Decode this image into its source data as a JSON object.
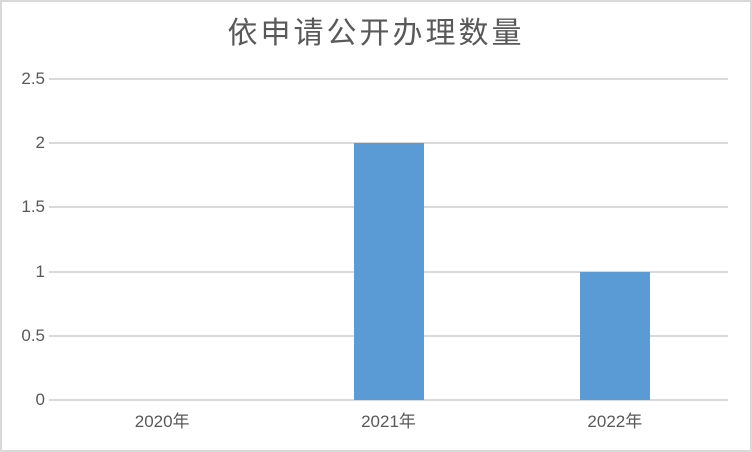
{
  "chart_data": {
    "type": "bar",
    "title": "依申请公开办理数量",
    "categories": [
      "2020年",
      "2021年",
      "2022年"
    ],
    "values": [
      0,
      2,
      1
    ],
    "yticks": [
      "0",
      "0.5",
      "1",
      "1.5",
      "2",
      "2.5"
    ],
    "ytick_values": [
      0,
      0.5,
      1,
      1.5,
      2,
      2.5
    ],
    "ylim": [
      0,
      2.5
    ],
    "xlabel": "",
    "ylabel": "",
    "grid": true,
    "legend_position": "none",
    "colors": {
      "bar": "#5b9bd5",
      "gridline": "#d9d9d9",
      "axis_text": "#595959",
      "title_text": "#595959",
      "frame_border": "#d9d9d9",
      "background": "#ffffff"
    }
  }
}
